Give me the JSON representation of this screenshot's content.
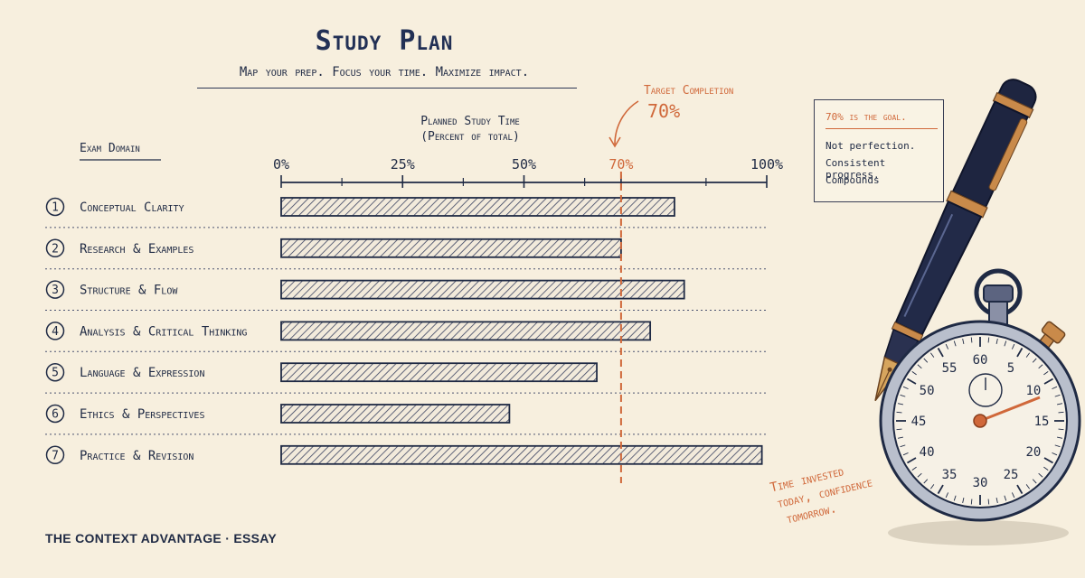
{
  "header": {
    "title": "Study Plan",
    "subtitle": "Map your prep.  Focus your time.  Maximize impact."
  },
  "axis": {
    "domain_label": "Exam Domain",
    "value_label_line1": "Planned Study Time",
    "value_label_line2": "(Percent of total)"
  },
  "target": {
    "label": "Target Completion",
    "value_text": "70%"
  },
  "note": {
    "goal": "70% is the goal.",
    "line1": "Not perfection.",
    "line2": "Consistent progress.",
    "line3": "Compounds"
  },
  "tagline": {
    "line1": "Time invested",
    "line2": "today, confidence",
    "line3": "tomorrow."
  },
  "footer": "THE CONTEXT ADVANTAGE · ESSAY",
  "colors": {
    "ink": "#223055",
    "accent": "#d0683a",
    "background": "#f7efde"
  },
  "icons": [
    "fountain-pen-icon",
    "stopwatch-icon"
  ],
  "stopwatch": {
    "dial_numbers": [
      "60",
      "5",
      "10",
      "15",
      "20",
      "25",
      "30",
      "35",
      "40",
      "45",
      "50",
      "55"
    ]
  },
  "chart_data": {
    "type": "bar",
    "orientation": "horizontal",
    "categories": [
      "Conceptual Clarity",
      "Research & Examples",
      "Structure & Flow",
      "Analysis & Critical Thinking",
      "Language & Expression",
      "Ethics & Perspectives",
      "Practice & Revision"
    ],
    "category_numbers": [
      "1",
      "2",
      "3",
      "4",
      "5",
      "6",
      "7"
    ],
    "values": [
      81,
      70,
      83,
      76,
      65,
      47,
      99
    ],
    "title": "Study Plan",
    "xlabel": "Planned Study Time (Percent of total)",
    "ylabel": "Exam Domain",
    "xlim": [
      0,
      100
    ],
    "ticks": [
      {
        "value": 0,
        "label": "0%"
      },
      {
        "value": 25,
        "label": "25%"
      },
      {
        "value": 50,
        "label": "50%"
      },
      {
        "value": 70,
        "label": "70%"
      },
      {
        "value": 100,
        "label": "100%"
      }
    ],
    "minor_ticks": [
      12.5,
      37.5,
      62.5,
      87.5
    ],
    "reference_line": {
      "value": 70,
      "label": "Target Completion 70%"
    },
    "grid": false
  }
}
